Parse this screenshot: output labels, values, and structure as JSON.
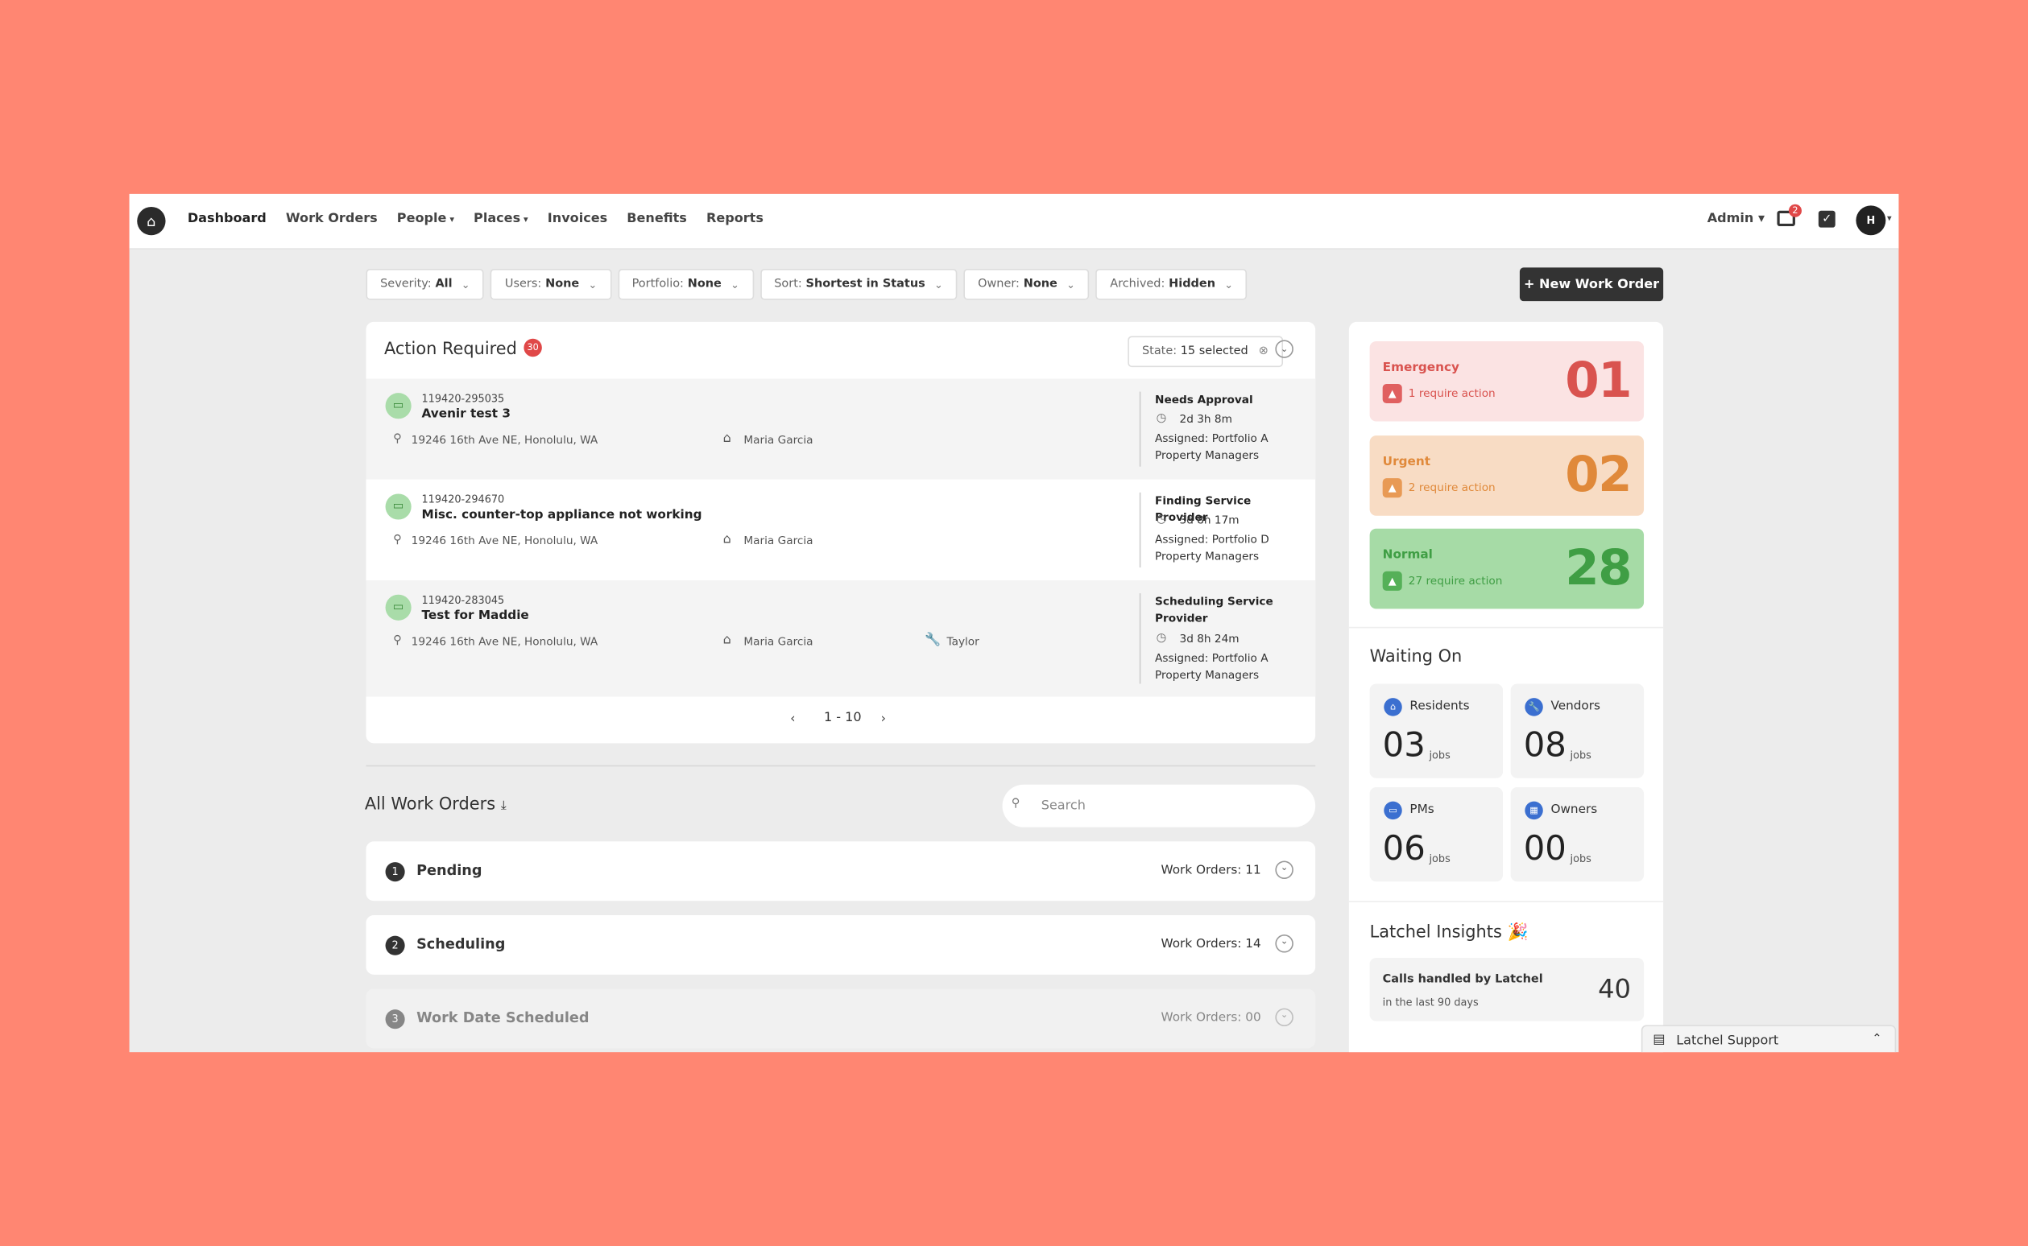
{
  "nav": {
    "items": [
      "Dashboard",
      "Work Orders",
      "People",
      "Places",
      "Invoices",
      "Benefits",
      "Reports"
    ],
    "admin": "Admin",
    "messages_badge": "2",
    "avatar": "H"
  },
  "filters": [
    {
      "label": "Severity:",
      "value": "All"
    },
    {
      "label": "Users:",
      "value": "None"
    },
    {
      "label": "Portfolio:",
      "value": "None"
    },
    {
      "label": "Sort:",
      "value": "Shortest in Status"
    },
    {
      "label": "Owner:",
      "value": "None"
    },
    {
      "label": "Archived:",
      "value": "Hidden"
    }
  ],
  "new_button": "+ New Work Order",
  "action_required": {
    "title": "Action Required",
    "badge": "30",
    "state_label": "State:",
    "state_value": "15 selected",
    "rows": [
      {
        "id": "119420-295035",
        "title": "Avenir test 3",
        "address": "19246 16th Ave NE, Honolulu, WA",
        "manager": "Maria Garcia",
        "status": "Needs Approval",
        "time": "2d 3h 8m",
        "assigned": "Assigned: Portfolio A Property Managers"
      },
      {
        "id": "119420-294670",
        "title": "Misc. counter-top appliance not working",
        "address": "19246 16th Ave NE, Honolulu, WA",
        "manager": "Maria Garcia",
        "status": "Finding Service Provider",
        "time": "3d 8h 17m",
        "assigned": "Assigned: Portfolio D Property Managers"
      },
      {
        "id": "119420-283045",
        "title": "Test for Maddie",
        "address": "19246 16th Ave NE, Honolulu, WA",
        "manager": "Maria Garcia",
        "vendor": "Taylor",
        "status": "Scheduling Service Provider",
        "time": "3d 8h 24m",
        "assigned": "Assigned: Portfolio A Property Managers"
      }
    ],
    "pagination": "1 - 10"
  },
  "all_work_orders": {
    "title": "All Work Orders",
    "search_placeholder": "Search",
    "groups": [
      {
        "number": "1",
        "name": "Pending",
        "count": "Work Orders: 11"
      },
      {
        "number": "2",
        "name": "Scheduling",
        "count": "Work Orders: 14"
      },
      {
        "number": "3",
        "name": "Work Date Scheduled",
        "count": "Work Orders: 00"
      }
    ]
  },
  "severity": [
    {
      "name": "Emergency",
      "note": "1 require action",
      "count": "01"
    },
    {
      "name": "Urgent",
      "note": "2 require action",
      "count": "02"
    },
    {
      "name": "Normal",
      "note": "27 require action",
      "count": "28"
    }
  ],
  "waiting_on": {
    "title": "Waiting On",
    "items": [
      {
        "name": "Residents",
        "count": "03",
        "unit": "jobs"
      },
      {
        "name": "Vendors",
        "count": "08",
        "unit": "jobs"
      },
      {
        "name": "PMs",
        "count": "06",
        "unit": "jobs"
      },
      {
        "name": "Owners",
        "count": "00",
        "unit": "jobs"
      }
    ]
  },
  "insights": {
    "title": "Latchel Insights",
    "card_title": "Calls handled by Latchel",
    "card_sub": "in the last 90 days",
    "card_value": "40"
  },
  "support": "Latchel Support"
}
